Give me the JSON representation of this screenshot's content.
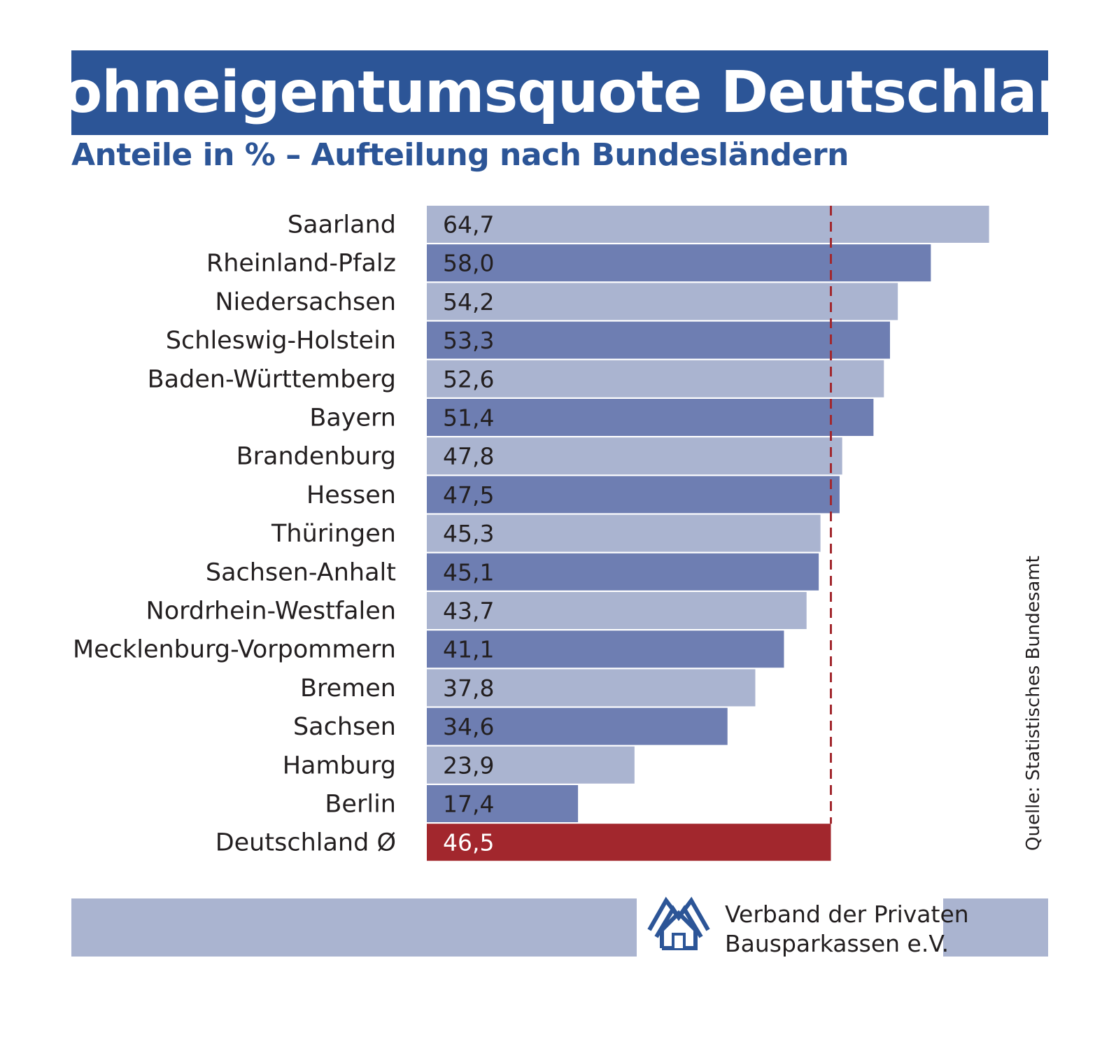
{
  "title": "Wohneigentumsquote Deutschland",
  "subtitle": "Anteile in % – Aufteilung nach Bundesländern",
  "source": "Quelle: Statistisches Bundesamt",
  "logo": {
    "line1": "Verband der Privaten",
    "line2": "Bausparkassen e.V."
  },
  "colors": {
    "title_bg": "#2c5597",
    "bar_light": "#aab4d0",
    "bar_dark": "#6e7eb2",
    "average_bar": "#a2272d",
    "average_line": "#a2272d"
  },
  "chart_data": {
    "type": "bar",
    "orientation": "horizontal",
    "categories": [
      "Saarland",
      "Rheinland-Pfalz",
      "Niedersachsen",
      "Schleswig-Holstein",
      "Baden-Württemberg",
      "Bayern",
      "Brandenburg",
      "Hessen",
      "Thüringen",
      "Sachsen-Anhalt",
      "Nordrhein-Westfalen",
      "Mecklenburg-Vorpommern",
      "Bremen",
      "Sachsen",
      "Hamburg",
      "Berlin",
      "Deutschland Ø"
    ],
    "values": [
      64.7,
      58.0,
      54.2,
      53.3,
      52.6,
      51.4,
      47.8,
      47.5,
      45.3,
      45.1,
      43.7,
      41.1,
      37.8,
      34.6,
      23.9,
      17.4,
      46.5
    ],
    "value_labels": [
      "64,7",
      "58,0",
      "54,2",
      "53,3",
      "52,6",
      "51,4",
      "47,8",
      "47,5",
      "45,3",
      "45,1",
      "43,7",
      "41,1",
      "37,8",
      "34,6",
      "23,9",
      "17,4",
      "46,5"
    ],
    "average": 46.5,
    "xlim": [
      0,
      70
    ],
    "grid": false,
    "legend": false
  }
}
